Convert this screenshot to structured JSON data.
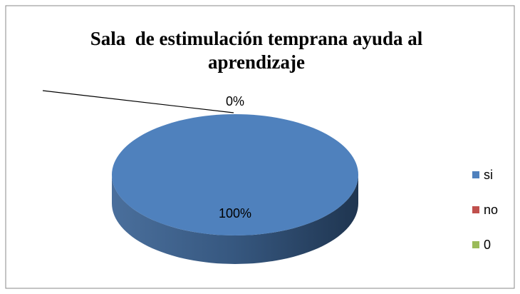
{
  "chart_data": {
    "type": "pie3d",
    "title": "Sala  de estimulación temprana ayuda al aprendizaje",
    "categories": [
      "si",
      "no",
      "0"
    ],
    "values": [
      100,
      0,
      0
    ],
    "value_labels": [
      "100%",
      "0%",
      null
    ],
    "colors": [
      "#4f81bd",
      "#c0504d",
      "#9bbb59"
    ],
    "legend": "right"
  }
}
